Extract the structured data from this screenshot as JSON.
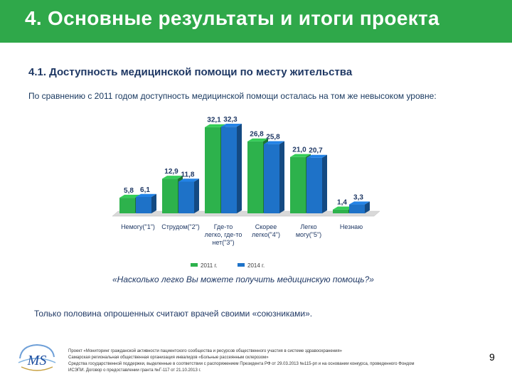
{
  "header": {
    "title": "4. Основные результаты и итоги проекта"
  },
  "subtitle": "4.1. Доступность медицинской помощи по месту жительства",
  "intro": "По сравнению с 2011 годом доступность медицинской помощи осталась на том же невысоком уровне:",
  "chart_data": {
    "type": "bar",
    "categories": [
      [
        "Немогу(\"1\")"
      ],
      [
        "Струдом(\"2\")"
      ],
      [
        "Где-то",
        "легко, где-то",
        "нет(\"3\")"
      ],
      [
        "Скорее",
        "легко(\"4\")"
      ],
      [
        "Легко",
        "могу(\"5\")"
      ],
      [
        "Незнаю"
      ]
    ],
    "series": [
      {
        "name": "2011 г.",
        "color": "#2db24c",
        "values": [
          5.8,
          12.9,
          32.1,
          26.8,
          21.0,
          1.4
        ],
        "labels": [
          "5,8",
          "12,9",
          "32,1",
          "26,8",
          "21,0",
          "1,4"
        ]
      },
      {
        "name": "2014 г.",
        "color": "#1e72c8",
        "values": [
          6.1,
          11.8,
          32.3,
          25.8,
          20.7,
          3.3
        ],
        "labels": [
          "6,1",
          "11,8",
          "32,3",
          "25,8",
          "20,7",
          "3,3"
        ]
      }
    ],
    "ylim": [
      0,
      35
    ],
    "title": "",
    "xlabel": "",
    "ylabel": "",
    "legend": "bottom"
  },
  "question": "«Насколько легко Вы можете получить медицинскую помощь?»",
  "conclusion": "Только половина опрошенных считают врачей своими «союзниками».",
  "footer": {
    "lines": [
      "Проект «Мониторинг гражданской активности пациентского сообщества и ресурсов общественного участия в системе здравоохранения»",
      "Самарская региональная общественная организация инвалидов «Больные рассеянным склерозом»",
      "Средства государственной поддержки, выделенные в соответствии с распоряжением Президента РФ от 29.03.2013 №115-рп и на основании конкурса, проведенного Фондом",
      "ИСЭПИ. Договор о предоставлении гранта №Г-117 от 21.10.2013 г."
    ]
  },
  "logo": {
    "letters": "MS"
  },
  "page_number": "9"
}
